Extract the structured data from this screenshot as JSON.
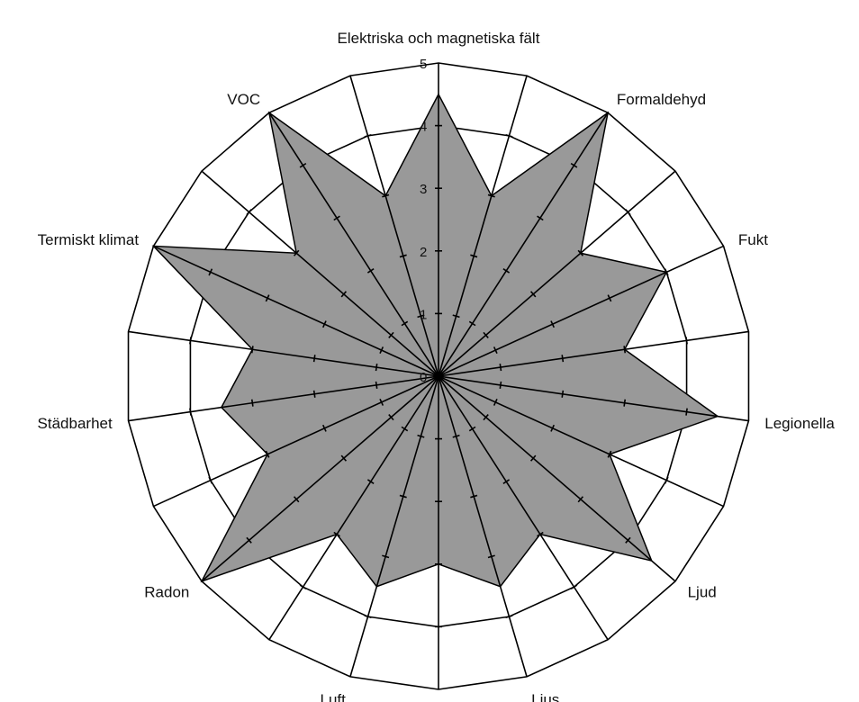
{
  "chart_data": {
    "type": "radar",
    "title": "",
    "categories": [
      "Elektriska och magnetiska fält",
      "",
      "Formaldehyd",
      "",
      "Fukt",
      "",
      "Legionella",
      "",
      "Ljud",
      "",
      "Ljus",
      "",
      "Luft",
      "",
      "Radon",
      "",
      "Städbarhet",
      "",
      "Termiskt klimat",
      "",
      "VOC",
      ""
    ],
    "values": [
      4.5,
      3,
      5,
      3,
      4,
      3,
      4.5,
      3,
      4.5,
      3,
      3.5,
      3,
      3.5,
      3,
      5,
      3,
      3.5,
      3,
      5,
      3,
      5,
      3
    ],
    "rlim": [
      0,
      5
    ],
    "rticks": [
      0,
      1,
      2,
      3,
      4,
      5
    ],
    "grid": true,
    "fill_color": "#999999",
    "line_color": "#000000"
  }
}
